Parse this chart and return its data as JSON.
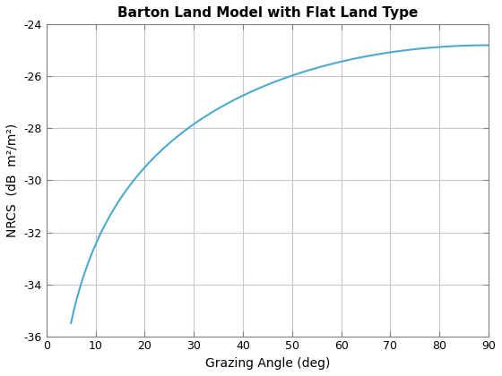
{
  "title": "Barton Land Model with Flat Land Type",
  "xlabel": "Grazing Angle (deg)",
  "ylabel": "NRCS  (dB  m²/m²)",
  "xlim": [
    0,
    90
  ],
  "ylim": [
    -36,
    -24
  ],
  "xticks": [
    0,
    10,
    20,
    30,
    40,
    50,
    60,
    70,
    80,
    90
  ],
  "yticks": [
    -36,
    -34,
    -32,
    -30,
    -28,
    -26,
    -24
  ],
  "line_color": "#4DAACC",
  "line_width": 1.5,
  "x_start": 5,
  "x_end": 90,
  "A": -24.8,
  "B": 10.09,
  "background_color": "#ffffff",
  "grid_color": "#c8c8c8",
  "title_fontsize": 11,
  "label_fontsize": 10,
  "tick_fontsize": 9
}
